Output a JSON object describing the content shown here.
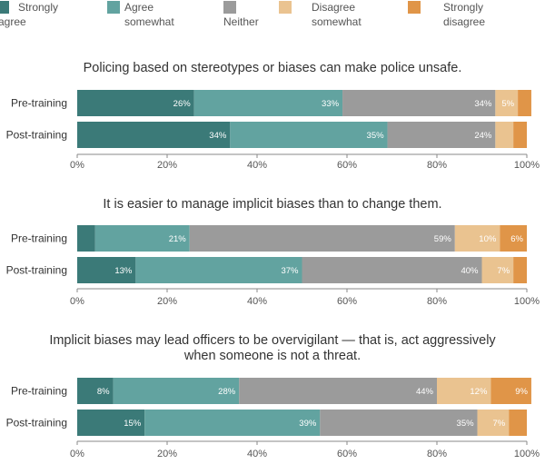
{
  "legend": [
    {
      "label": "Strongly\nagree",
      "color": "#3b7a78"
    },
    {
      "label": "Agree\nsomewhat",
      "color": "#62a3a0"
    },
    {
      "label": "Neither",
      "color": "#9b9b9b"
    },
    {
      "label": "Disagree\nsomewhat",
      "color": "#eac390"
    },
    {
      "label": "Strongly\ndisagree",
      "color": "#e09548"
    }
  ],
  "chart_data": [
    {
      "type": "bar",
      "orientation": "horizontal",
      "stacked": true,
      "title": "Policing based on stereotypes or biases can make police unsafe.",
      "categories": [
        "Pre-training",
        "Post-training"
      ],
      "series": [
        {
          "name": "Strongly agree",
          "values": [
            26,
            34
          ],
          "labels": [
            "26%",
            "34%"
          ]
        },
        {
          "name": "Agree somewhat",
          "values": [
            33,
            35
          ],
          "labels": [
            "33%",
            "35%"
          ]
        },
        {
          "name": "Neither",
          "values": [
            34,
            24
          ],
          "labels": [
            "34%",
            "24%"
          ]
        },
        {
          "name": "Disagree somewhat",
          "values": [
            5,
            4
          ],
          "labels": [
            "5%",
            ""
          ]
        },
        {
          "name": "Strongly disagree",
          "values": [
            3,
            3
          ],
          "labels": [
            "",
            ""
          ]
        }
      ],
      "xlim": [
        0,
        100
      ],
      "xticks": [
        "0%",
        "20%",
        "40%",
        "60%",
        "80%",
        "100%"
      ]
    },
    {
      "type": "bar",
      "orientation": "horizontal",
      "stacked": true,
      "title": "It is easier to manage implicit biases than to change them.",
      "categories": [
        "Pre-training",
        "Post-training"
      ],
      "series": [
        {
          "name": "Strongly agree",
          "values": [
            4,
            13
          ],
          "labels": [
            "",
            "13%"
          ]
        },
        {
          "name": "Agree somewhat",
          "values": [
            21,
            37
          ],
          "labels": [
            "21%",
            "37%"
          ]
        },
        {
          "name": "Neither",
          "values": [
            59,
            40
          ],
          "labels": [
            "59%",
            "40%"
          ]
        },
        {
          "name": "Disagree somewhat",
          "values": [
            10,
            7
          ],
          "labels": [
            "10%",
            "7%"
          ]
        },
        {
          "name": "Strongly disagree",
          "values": [
            6,
            3
          ],
          "labels": [
            "6%",
            ""
          ]
        }
      ],
      "xlim": [
        0,
        100
      ],
      "xticks": [
        "0%",
        "20%",
        "40%",
        "60%",
        "80%",
        "100%"
      ]
    },
    {
      "type": "bar",
      "orientation": "horizontal",
      "stacked": true,
      "title": "Implicit biases may lead officers to be overvigilant — that is, act aggressively\nwhen someone is not a threat.",
      "categories": [
        "Pre-training",
        "Post-training"
      ],
      "series": [
        {
          "name": "Strongly agree",
          "values": [
            8,
            15
          ],
          "labels": [
            "8%",
            "15%"
          ]
        },
        {
          "name": "Agree somewhat",
          "values": [
            28,
            39
          ],
          "labels": [
            "28%",
            "39%"
          ]
        },
        {
          "name": "Neither",
          "values": [
            44,
            35
          ],
          "labels": [
            "44%",
            "35%"
          ]
        },
        {
          "name": "Disagree somewhat",
          "values": [
            12,
            7
          ],
          "labels": [
            "12%",
            "7%"
          ]
        },
        {
          "name": "Strongly disagree",
          "values": [
            9,
            4
          ],
          "labels": [
            "9%",
            ""
          ]
        }
      ],
      "xlim": [
        0,
        100
      ],
      "xticks": [
        "0%",
        "20%",
        "40%",
        "60%",
        "80%",
        "100%"
      ]
    }
  ]
}
